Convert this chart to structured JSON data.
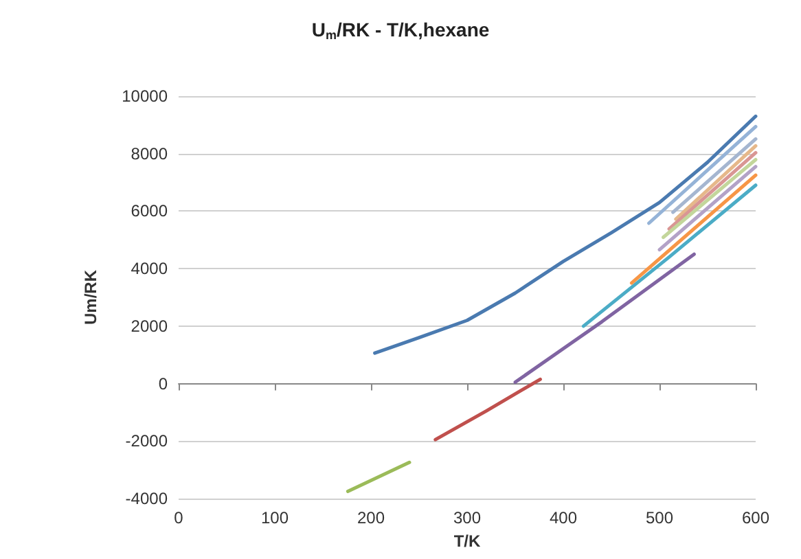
{
  "chart_data": {
    "type": "line",
    "title": "U$_{m}$/RK - T/K,hexane",
    "xlabel": "T/K",
    "ylabel": "Um/RK",
    "xlim": [
      0,
      600
    ],
    "xticks": [
      0,
      100,
      200,
      300,
      400,
      500,
      600
    ],
    "ylim": [
      -4000,
      10000
    ],
    "yticks": [
      -4000,
      -2000,
      0,
      2000,
      4000,
      6000,
      8000,
      10000
    ],
    "grid": "y",
    "marker": "none",
    "line_style": "solid",
    "series": [
      {
        "color": "#4a7ab0",
        "x": [
          204,
          250,
          300,
          350,
          400,
          450,
          500,
          550,
          600
        ],
        "values": [
          1060,
          1600,
          2200,
          3150,
          4250,
          5250,
          6300,
          7700,
          9300
        ]
      },
      {
        "color": "#c0504d",
        "x": [
          267,
          320,
          376
        ],
        "values": [
          -1950,
          -950,
          150
        ]
      },
      {
        "color": "#9bbb59",
        "x": [
          176,
          240
        ],
        "values": [
          -3750,
          -2740
        ]
      },
      {
        "color": "#8064a2",
        "x": [
          350,
          440,
          536
        ],
        "values": [
          50,
          2150,
          4500
        ]
      },
      {
        "color": "#4bacc6",
        "x": [
          421,
          510,
          600
        ],
        "values": [
          2000,
          4400,
          6900
        ]
      },
      {
        "color": "#f79646",
        "x": [
          471,
          600
        ],
        "values": [
          3500,
          7250
        ]
      },
      {
        "color": "#95b3d7",
        "x": [
          489,
          600
        ],
        "values": [
          5580,
          8940
        ]
      },
      {
        "color": "#a5b6d0",
        "x": [
          514,
          600
        ],
        "values": [
          5960,
          8510
        ]
      },
      {
        "color": "#e6b88a",
        "x": [
          517,
          600
        ],
        "values": [
          5720,
          8270
        ]
      },
      {
        "color": "#d99694",
        "x": [
          510,
          600
        ],
        "values": [
          5380,
          8030
        ]
      },
      {
        "color": "#c3d69b",
        "x": [
          504,
          600
        ],
        "values": [
          5090,
          7790
        ]
      },
      {
        "color": "#b3a2c7",
        "x": [
          500,
          600
        ],
        "values": [
          4660,
          7550
        ]
      }
    ]
  }
}
